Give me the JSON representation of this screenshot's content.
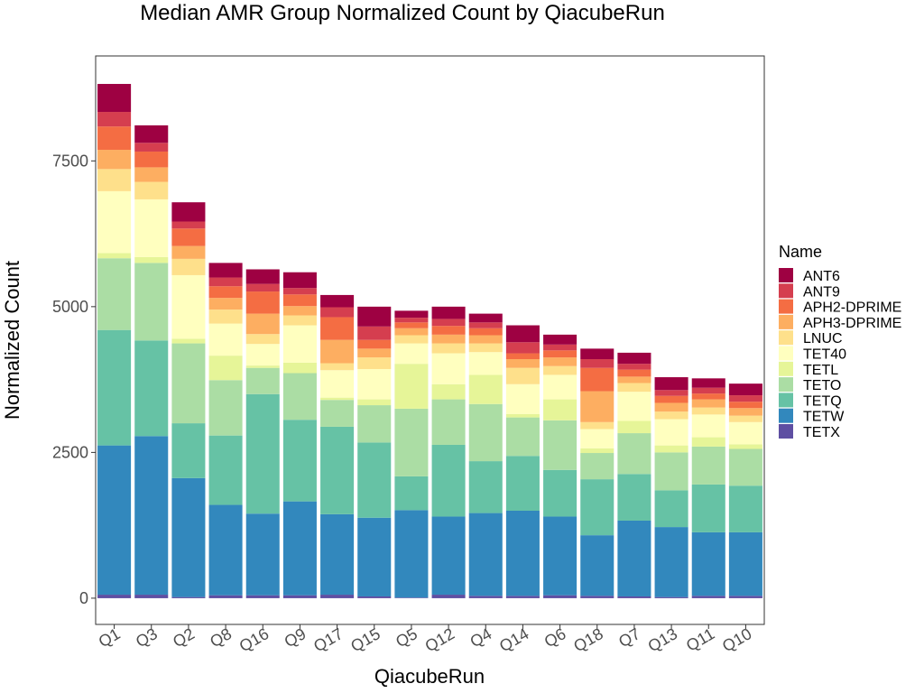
{
  "chart_data": {
    "type": "bar",
    "stacked": true,
    "title": "Median AMR Group Normalized Count by QiacubeRun",
    "xlabel": "QiacubeRun",
    "ylabel": "Normalized Count",
    "ylim": [
      -450,
      9300
    ],
    "yticks": [
      0,
      2500,
      5000,
      7500
    ],
    "ytick_labels": [
      "0",
      "2500",
      "5000",
      "7500"
    ],
    "grid": false,
    "legend": {
      "title": "Name",
      "position": "right"
    },
    "categories": [
      "Q1",
      "Q3",
      "Q2",
      "Q8",
      "Q16",
      "Q9",
      "Q17",
      "Q15",
      "Q5",
      "Q12",
      "Q4",
      "Q14",
      "Q6",
      "Q18",
      "Q7",
      "Q13",
      "Q11",
      "Q10"
    ],
    "series": [
      {
        "name": "TETX",
        "color": "#5E4FA2",
        "values": [
          60,
          60,
          20,
          50,
          50,
          50,
          60,
          30,
          10,
          60,
          40,
          40,
          50,
          40,
          30,
          20,
          40,
          40
        ]
      },
      {
        "name": "TETW",
        "color": "#3288BD",
        "values": [
          2560,
          2720,
          2040,
          1550,
          1400,
          1610,
          1380,
          1350,
          1500,
          1340,
          1420,
          1460,
          1350,
          1040,
          1300,
          1200,
          1090,
          1090
        ]
      },
      {
        "name": "TETQ",
        "color": "#66C2A5",
        "values": [
          1980,
          1640,
          940,
          1190,
          2050,
          1400,
          1500,
          1290,
          580,
          1230,
          890,
          940,
          800,
          960,
          800,
          630,
          820,
          800
        ]
      },
      {
        "name": "TETO",
        "color": "#ABDDA4",
        "values": [
          1230,
          1330,
          1370,
          950,
          450,
          800,
          460,
          640,
          1160,
          780,
          980,
          660,
          850,
          450,
          700,
          650,
          650,
          630
        ]
      },
      {
        "name": "TETL",
        "color": "#E6F598",
        "values": [
          90,
          100,
          80,
          420,
          40,
          180,
          40,
          100,
          770,
          260,
          500,
          60,
          360,
          80,
          210,
          120,
          160,
          80
        ]
      },
      {
        "name": "TET40",
        "color": "#FFFFBF",
        "values": [
          1060,
          990,
          1090,
          550,
          370,
          640,
          470,
          520,
          350,
          530,
          390,
          510,
          420,
          330,
          500,
          450,
          390,
          380
        ]
      },
      {
        "name": "LNUC",
        "color": "#FEE08B",
        "values": [
          380,
          300,
          280,
          240,
          170,
          170,
          120,
          200,
          140,
          170,
          150,
          280,
          150,
          120,
          150,
          130,
          120,
          110
        ]
      },
      {
        "name": "APH3-DPRIME",
        "color": "#FDAE61",
        "values": [
          330,
          250,
          220,
          200,
          350,
          160,
          400,
          150,
          120,
          150,
          140,
          150,
          150,
          530,
          110,
          150,
          140,
          130
        ]
      },
      {
        "name": "APH2-DPRIME",
        "color": "#F46D43",
        "values": [
          400,
          270,
          300,
          200,
          380,
          200,
          390,
          150,
          100,
          150,
          120,
          100,
          120,
          400,
          120,
          120,
          100,
          110
        ]
      },
      {
        "name": "ANT9",
        "color": "#D53E4F",
        "values": [
          250,
          150,
          120,
          150,
          130,
          110,
          170,
          230,
          80,
          120,
          100,
          190,
          100,
          150,
          100,
          100,
          100,
          110
        ]
      },
      {
        "name": "ANT6",
        "color": "#9E0142",
        "values": [
          480,
          300,
          330,
          250,
          250,
          270,
          210,
          340,
          120,
          210,
          150,
          290,
          170,
          180,
          190,
          220,
          160,
          200
        ]
      }
    ]
  }
}
